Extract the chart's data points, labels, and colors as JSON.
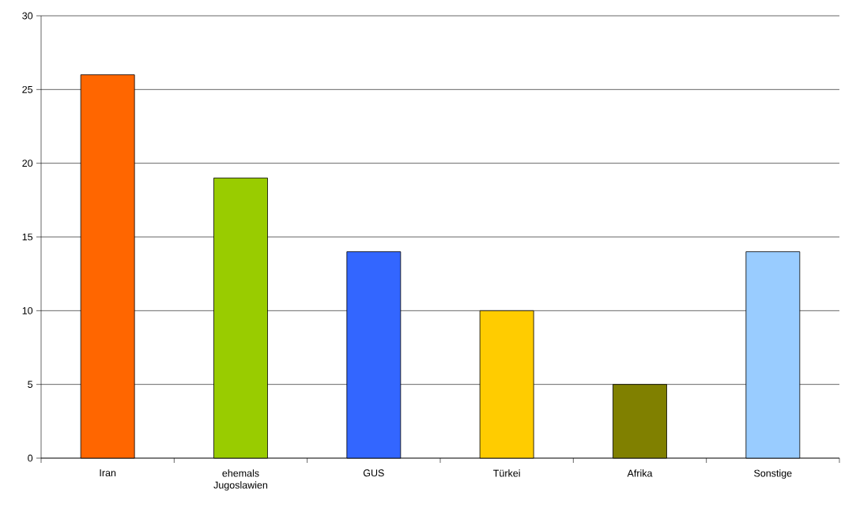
{
  "chart_data": {
    "type": "bar",
    "categories": [
      "Iran",
      "ehemals Jugoslawien",
      "GUS",
      "Türkei",
      "Afrika",
      "Sonstige"
    ],
    "values": [
      26,
      19,
      14,
      10,
      5,
      14
    ],
    "colors": [
      "#ff6600",
      "#99cc00",
      "#3366ff",
      "#ffcc00",
      "#808000",
      "#99ccff"
    ],
    "ylim": [
      0,
      30
    ],
    "yticks": [
      0,
      5,
      10,
      15,
      20,
      25,
      30
    ],
    "grid": "y"
  }
}
